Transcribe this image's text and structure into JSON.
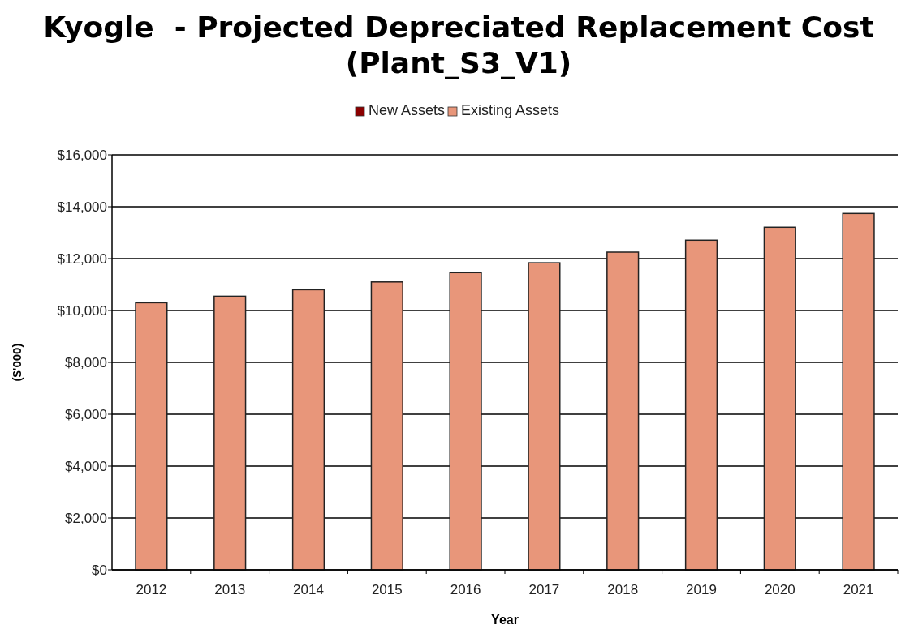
{
  "chart_data": {
    "type": "bar",
    "title": "Kyogle  - Projected Depreciated Replacement Cost (Plant_S3_V1)",
    "xlabel": "Year",
    "ylabel": "($'000)",
    "categories": [
      "2012",
      "2013",
      "2014",
      "2015",
      "2016",
      "2017",
      "2018",
      "2019",
      "2020",
      "2021"
    ],
    "series": [
      {
        "name": "Existing Assets",
        "color": "#e8967a",
        "values": [
          10300,
          10550,
          10800,
          11100,
          11460,
          11840,
          12250,
          12710,
          13210,
          13740
        ]
      },
      {
        "name": "New Assets",
        "color": "#8b0000",
        "values": [
          null,
          null,
          null,
          null,
          null,
          null,
          null,
          null,
          null,
          null
        ]
      }
    ],
    "ylim": [
      0,
      16000
    ],
    "yticks": [
      {
        "value": 0,
        "label": "$0"
      },
      {
        "value": 2000,
        "label": "$2,000"
      },
      {
        "value": 4000,
        "label": "$4,000"
      },
      {
        "value": 6000,
        "label": "$6,000"
      },
      {
        "value": 8000,
        "label": "$8,000"
      },
      {
        "value": 10000,
        "label": "$10,000"
      },
      {
        "value": 12000,
        "label": "$12,000"
      },
      {
        "value": 14000,
        "label": "$14,000"
      },
      {
        "value": 16000,
        "label": "$16,000"
      }
    ],
    "grid": "y",
    "legend": "top"
  }
}
